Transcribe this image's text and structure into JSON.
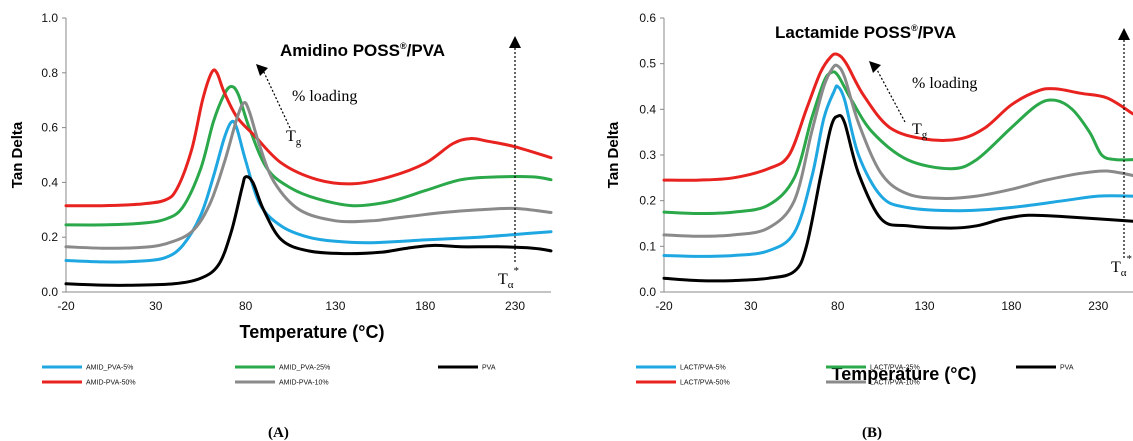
{
  "chart_data": [
    {
      "type": "line",
      "panel_label": "A",
      "title": "Amidino POSS",
      "title_sup": "®",
      "title_suffix": "/PVA",
      "xlabel": "Temperature (°C)",
      "ylabel": "Tan Delta",
      "xlim": [
        -20,
        250
      ],
      "ylim": [
        0,
        1.0
      ],
      "xticks": [
        "-20",
        "30",
        "80",
        "130",
        "180",
        "230"
      ],
      "yticks": [
        "0.0",
        "0.2",
        "0.4",
        "0.6",
        "0.8",
        "1.0"
      ],
      "grid": false,
      "legend_position": "bottom",
      "annotations": {
        "loading": "% loading",
        "tg": "T",
        "tg_sub": "g",
        "ta": "T",
        "ta_sub": "α",
        "ta_sup": "*"
      },
      "series": [
        {
          "name": "AMID_PVA-5%",
          "color": "#1ea7e1",
          "points": [
            [
              -20,
              0.115
            ],
            [
              0,
              0.11
            ],
            [
              20,
              0.112
            ],
            [
              35,
              0.125
            ],
            [
              45,
              0.17
            ],
            [
              55,
              0.28
            ],
            [
              62,
              0.42
            ],
            [
              68,
              0.56
            ],
            [
              72,
              0.62
            ],
            [
              75,
              0.6
            ],
            [
              80,
              0.48
            ],
            [
              88,
              0.32
            ],
            [
              100,
              0.24
            ],
            [
              115,
              0.2
            ],
            [
              130,
              0.185
            ],
            [
              150,
              0.18
            ],
            [
              180,
              0.19
            ],
            [
              210,
              0.2
            ],
            [
              230,
              0.21
            ],
            [
              250,
              0.22
            ]
          ]
        },
        {
          "name": "AMID_PVA-25%",
          "color": "#2aa84a",
          "points": [
            [
              -20,
              0.245
            ],
            [
              0,
              0.245
            ],
            [
              20,
              0.25
            ],
            [
              35,
              0.265
            ],
            [
              45,
              0.31
            ],
            [
              55,
              0.45
            ],
            [
              62,
              0.62
            ],
            [
              68,
              0.72
            ],
            [
              72,
              0.75
            ],
            [
              76,
              0.72
            ],
            [
              82,
              0.6
            ],
            [
              92,
              0.45
            ],
            [
              105,
              0.38
            ],
            [
              120,
              0.34
            ],
            [
              140,
              0.315
            ],
            [
              160,
              0.33
            ],
            [
              180,
              0.37
            ],
            [
              200,
              0.41
            ],
            [
              220,
              0.42
            ],
            [
              240,
              0.42
            ],
            [
              250,
              0.41
            ]
          ]
        },
        {
          "name": "PVA",
          "color": "#000000",
          "points": [
            [
              -20,
              0.03
            ],
            [
              0,
              0.025
            ],
            [
              20,
              0.025
            ],
            [
              40,
              0.03
            ],
            [
              55,
              0.05
            ],
            [
              65,
              0.1
            ],
            [
              72,
              0.22
            ],
            [
              78,
              0.38
            ],
            [
              80,
              0.42
            ],
            [
              84,
              0.4
            ],
            [
              90,
              0.3
            ],
            [
              100,
              0.19
            ],
            [
              115,
              0.15
            ],
            [
              135,
              0.14
            ],
            [
              155,
              0.145
            ],
            [
              170,
              0.16
            ],
            [
              185,
              0.17
            ],
            [
              200,
              0.165
            ],
            [
              220,
              0.165
            ],
            [
              240,
              0.16
            ],
            [
              250,
              0.15
            ]
          ]
        },
        {
          "name": "AMID-PVA-50%",
          "color": "#e8231f",
          "points": [
            [
              -20,
              0.315
            ],
            [
              0,
              0.315
            ],
            [
              20,
              0.32
            ],
            [
              35,
              0.335
            ],
            [
              42,
              0.38
            ],
            [
              50,
              0.52
            ],
            [
              56,
              0.7
            ],
            [
              61,
              0.8
            ],
            [
              64,
              0.8
            ],
            [
              68,
              0.73
            ],
            [
              75,
              0.64
            ],
            [
              85,
              0.57
            ],
            [
              100,
              0.47
            ],
            [
              120,
              0.41
            ],
            [
              140,
              0.395
            ],
            [
              160,
              0.42
            ],
            [
              180,
              0.47
            ],
            [
              195,
              0.54
            ],
            [
              205,
              0.56
            ],
            [
              215,
              0.55
            ],
            [
              230,
              0.53
            ],
            [
              250,
              0.49
            ]
          ]
        },
        {
          "name": "AMID-PVA-10%",
          "color": "#8a8a8a",
          "points": [
            [
              -20,
              0.165
            ],
            [
              0,
              0.16
            ],
            [
              20,
              0.162
            ],
            [
              35,
              0.175
            ],
            [
              50,
              0.22
            ],
            [
              60,
              0.32
            ],
            [
              68,
              0.47
            ],
            [
              75,
              0.63
            ],
            [
              79,
              0.69
            ],
            [
              82,
              0.66
            ],
            [
              88,
              0.53
            ],
            [
              96,
              0.4
            ],
            [
              110,
              0.3
            ],
            [
              130,
              0.26
            ],
            [
              150,
              0.26
            ],
            [
              170,
              0.275
            ],
            [
              190,
              0.29
            ],
            [
              210,
              0.3
            ],
            [
              230,
              0.305
            ],
            [
              250,
              0.29
            ]
          ]
        }
      ]
    },
    {
      "type": "line",
      "panel_label": "B",
      "title": "Lactamide POSS",
      "title_sup": "®",
      "title_suffix": "/PVA",
      "xlabel": "Temperature (°C)",
      "ylabel": "Tan Delta",
      "xlim": [
        -20,
        250
      ],
      "ylim": [
        0,
        0.6
      ],
      "xticks": [
        "-20",
        "30",
        "80",
        "130",
        "180",
        "230"
      ],
      "yticks": [
        "0.0",
        "0.1",
        "0.2",
        "0.3",
        "0.4",
        "0.5",
        "0.6"
      ],
      "grid": false,
      "legend_position": "bottom",
      "annotations": {
        "loading": "% loading",
        "tg": "T",
        "tg_sub": "g",
        "ta": "T",
        "ta_sub": "α",
        "ta_sup": "*"
      },
      "series": [
        {
          "name": "LACT/PVA-5%",
          "color": "#1ea7e1",
          "points": [
            [
              -20,
              0.08
            ],
            [
              0,
              0.078
            ],
            [
              20,
              0.08
            ],
            [
              40,
              0.09
            ],
            [
              55,
              0.13
            ],
            [
              65,
              0.25
            ],
            [
              72,
              0.38
            ],
            [
              78,
              0.44
            ],
            [
              80,
              0.45
            ],
            [
              84,
              0.42
            ],
            [
              92,
              0.3
            ],
            [
              105,
              0.21
            ],
            [
              120,
              0.185
            ],
            [
              150,
              0.178
            ],
            [
              180,
              0.185
            ],
            [
              210,
              0.2
            ],
            [
              230,
              0.21
            ],
            [
              250,
              0.21
            ]
          ]
        },
        {
          "name": "LACT/PVA-25%",
          "color": "#2aa84a",
          "points": [
            [
              -20,
              0.175
            ],
            [
              0,
              0.172
            ],
            [
              20,
              0.175
            ],
            [
              40,
              0.19
            ],
            [
              55,
              0.25
            ],
            [
              65,
              0.38
            ],
            [
              72,
              0.46
            ],
            [
              76,
              0.48
            ],
            [
              80,
              0.475
            ],
            [
              88,
              0.42
            ],
            [
              100,
              0.35
            ],
            [
              120,
              0.29
            ],
            [
              145,
              0.27
            ],
            [
              160,
              0.29
            ],
            [
              180,
              0.36
            ],
            [
              195,
              0.41
            ],
            [
              205,
              0.42
            ],
            [
              215,
              0.4
            ],
            [
              225,
              0.35
            ],
            [
              232,
              0.3
            ],
            [
              240,
              0.29
            ],
            [
              250,
              0.29
            ]
          ]
        },
        {
          "name": "PVA",
          "color": "#000000",
          "points": [
            [
              -20,
              0.03
            ],
            [
              0,
              0.025
            ],
            [
              20,
              0.025
            ],
            [
              40,
              0.03
            ],
            [
              55,
              0.045
            ],
            [
              62,
              0.1
            ],
            [
              70,
              0.25
            ],
            [
              76,
              0.36
            ],
            [
              80,
              0.385
            ],
            [
              84,
              0.37
            ],
            [
              92,
              0.26
            ],
            [
              105,
              0.16
            ],
            [
              120,
              0.145
            ],
            [
              145,
              0.14
            ],
            [
              160,
              0.145
            ],
            [
              175,
              0.16
            ],
            [
              190,
              0.168
            ],
            [
              210,
              0.165
            ],
            [
              230,
              0.16
            ],
            [
              250,
              0.155
            ]
          ]
        },
        {
          "name": "LACT/PVA-50%",
          "color": "#e8231f",
          "points": [
            [
              -20,
              0.245
            ],
            [
              0,
              0.245
            ],
            [
              20,
              0.25
            ],
            [
              40,
              0.27
            ],
            [
              52,
              0.3
            ],
            [
              62,
              0.4
            ],
            [
              70,
              0.48
            ],
            [
              76,
              0.515
            ],
            [
              80,
              0.52
            ],
            [
              85,
              0.5
            ],
            [
              95,
              0.43
            ],
            [
              110,
              0.36
            ],
            [
              130,
              0.335
            ],
            [
              150,
              0.335
            ],
            [
              165,
              0.36
            ],
            [
              180,
              0.41
            ],
            [
              195,
              0.44
            ],
            [
              205,
              0.445
            ],
            [
              220,
              0.435
            ],
            [
              235,
              0.425
            ],
            [
              250,
              0.39
            ]
          ]
        },
        {
          "name": "LACT/PVA-10%",
          "color": "#8a8a8a",
          "points": [
            [
              -20,
              0.125
            ],
            [
              0,
              0.122
            ],
            [
              20,
              0.125
            ],
            [
              40,
              0.14
            ],
            [
              55,
              0.2
            ],
            [
              65,
              0.35
            ],
            [
              72,
              0.45
            ],
            [
              77,
              0.49
            ],
            [
              80,
              0.495
            ],
            [
              84,
              0.47
            ],
            [
              92,
              0.37
            ],
            [
              105,
              0.26
            ],
            [
              120,
              0.215
            ],
            [
              140,
              0.205
            ],
            [
              160,
              0.21
            ],
            [
              180,
              0.225
            ],
            [
              200,
              0.245
            ],
            [
              220,
              0.26
            ],
            [
              235,
              0.265
            ],
            [
              250,
              0.255
            ]
          ]
        }
      ]
    }
  ]
}
